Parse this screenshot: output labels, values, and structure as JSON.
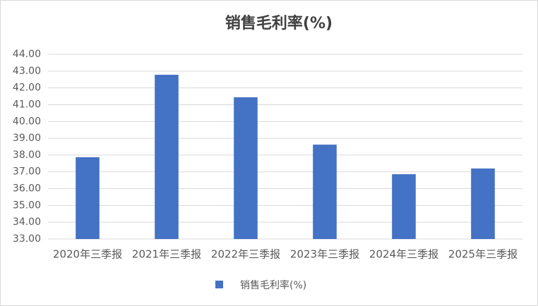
{
  "chart_data": {
    "type": "bar",
    "title": "销售毛利率(%)",
    "categories": [
      "2020年三季报",
      "2021年三季报",
      "2022年三季报",
      "2023年三季报",
      "2024年三季报",
      "2025年三季报"
    ],
    "series": [
      {
        "name": "销售毛利率(%)",
        "color": "#4472c4",
        "values": [
          37.87,
          42.78,
          41.44,
          38.62,
          36.86,
          37.2
        ]
      }
    ],
    "ylim": [
      33,
      44
    ],
    "yticks": [
      {
        "value": 33,
        "label": "33.00"
      },
      {
        "value": 34,
        "label": "34.00"
      },
      {
        "value": 35,
        "label": "35.00"
      },
      {
        "value": 36,
        "label": "36.00"
      },
      {
        "value": 37,
        "label": "37.00"
      },
      {
        "value": 38,
        "label": "38.00"
      },
      {
        "value": 39,
        "label": "39.00"
      },
      {
        "value": 40,
        "label": "40.00"
      },
      {
        "value": 41,
        "label": "41.00"
      },
      {
        "value": 42,
        "label": "42.00"
      },
      {
        "value": 43,
        "label": "43.00"
      },
      {
        "value": 44,
        "label": "44.00"
      }
    ],
    "grid": true,
    "legend": "bottom"
  }
}
